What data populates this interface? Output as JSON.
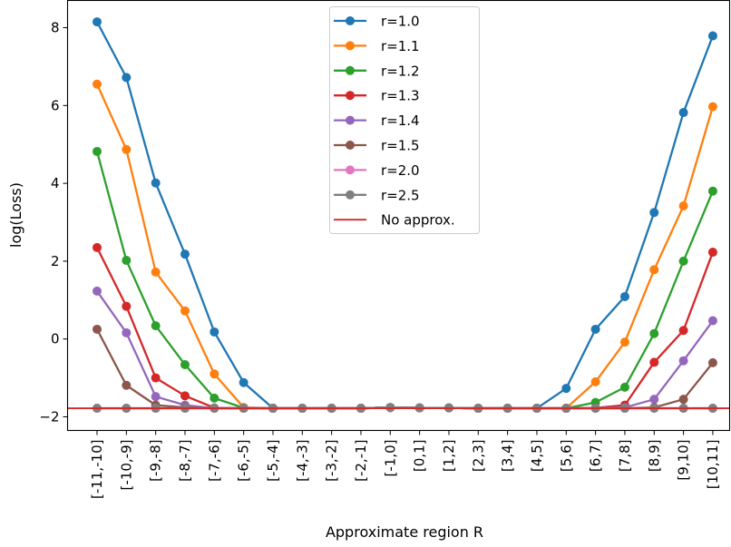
{
  "chart_data": {
    "type": "line",
    "title": "",
    "xlabel": "Approximate region R",
    "ylabel": "log(Loss)",
    "categories": [
      "[-11,-10]",
      "[-10,-9]",
      "[-9,-8]",
      "[-8,-7]",
      "[-7,-6]",
      "[-6,-5]",
      "[-5,-4]",
      "[-4,-3]",
      "[-3,-2]",
      "[-2,-1]",
      "[-1,0]",
      "[0,1]",
      "[1,2]",
      "[2,3]",
      "[3,4]",
      "[4,5]",
      "[5,6]",
      "[6,7]",
      "[7,8]",
      "[8,9]",
      "[9,10]",
      "[10,11]"
    ],
    "ylim": [
      -2.35,
      8.7
    ],
    "yticks": [
      -2,
      0,
      2,
      4,
      6,
      8
    ],
    "ytick_labels": [
      "−2",
      "0",
      "2",
      "4",
      "6",
      "8"
    ],
    "grid": false,
    "legend_position": "top-center",
    "series": [
      {
        "name": "r=1.0",
        "color": "#1f77b4",
        "values": [
          8.15,
          6.72,
          4.01,
          2.18,
          0.18,
          -1.12,
          -1.78,
          -1.78,
          -1.78,
          -1.78,
          -1.76,
          -1.77,
          -1.77,
          -1.78,
          -1.78,
          -1.78,
          -1.27,
          0.25,
          1.09,
          3.25,
          5.82,
          7.79
        ]
      },
      {
        "name": "r=1.1",
        "color": "#ff7f0e",
        "values": [
          6.55,
          4.87,
          1.72,
          0.72,
          -0.9,
          -1.76,
          -1.78,
          -1.78,
          -1.78,
          -1.78,
          -1.76,
          -1.77,
          -1.77,
          -1.78,
          -1.78,
          -1.78,
          -1.78,
          -1.1,
          -0.08,
          1.78,
          3.42,
          5.97
        ]
      },
      {
        "name": "r=1.2",
        "color": "#2ca02c",
        "values": [
          4.82,
          2.02,
          0.34,
          -0.66,
          -1.52,
          -1.77,
          -1.78,
          -1.78,
          -1.78,
          -1.78,
          -1.76,
          -1.77,
          -1.77,
          -1.78,
          -1.78,
          -1.78,
          -1.78,
          -1.63,
          -1.24,
          0.14,
          2.0,
          3.8
        ]
      },
      {
        "name": "r=1.3",
        "color": "#d62728",
        "values": [
          2.35,
          0.84,
          -1.0,
          -1.46,
          -1.77,
          -1.78,
          -1.78,
          -1.78,
          -1.78,
          -1.78,
          -1.76,
          -1.77,
          -1.77,
          -1.78,
          -1.78,
          -1.78,
          -1.78,
          -1.77,
          -1.7,
          -0.6,
          0.22,
          2.23
        ]
      },
      {
        "name": "r=1.4",
        "color": "#9467bd",
        "values": [
          1.23,
          0.16,
          -1.48,
          -1.7,
          -1.78,
          -1.78,
          -1.78,
          -1.78,
          -1.78,
          -1.78,
          -1.76,
          -1.77,
          -1.77,
          -1.78,
          -1.78,
          -1.78,
          -1.78,
          -1.78,
          -1.76,
          -1.55,
          -0.56,
          0.47
        ]
      },
      {
        "name": "r=1.5",
        "color": "#8c564b",
        "values": [
          0.25,
          -1.19,
          -1.7,
          -1.76,
          -1.78,
          -1.78,
          -1.78,
          -1.78,
          -1.78,
          -1.78,
          -1.76,
          -1.77,
          -1.77,
          -1.78,
          -1.78,
          -1.78,
          -1.78,
          -1.78,
          -1.78,
          -1.76,
          -1.55,
          -0.61
        ]
      },
      {
        "name": "r=2.0",
        "color": "#e377c2",
        "values": [
          -1.78,
          -1.78,
          -1.78,
          -1.78,
          -1.78,
          -1.78,
          -1.78,
          -1.78,
          -1.78,
          -1.78,
          -1.76,
          -1.77,
          -1.77,
          -1.78,
          -1.78,
          -1.78,
          -1.78,
          -1.78,
          -1.78,
          -1.78,
          -1.78,
          -1.78
        ]
      },
      {
        "name": "r=2.5",
        "color": "#7f7f7f",
        "values": [
          -1.78,
          -1.78,
          -1.78,
          -1.78,
          -1.78,
          -1.78,
          -1.78,
          -1.78,
          -1.78,
          -1.78,
          -1.76,
          -1.77,
          -1.77,
          -1.78,
          -1.78,
          -1.78,
          -1.78,
          -1.78,
          -1.78,
          -1.78,
          -1.78,
          -1.78
        ]
      }
    ],
    "reference_line": {
      "name": "No approx.",
      "color": "#d62728",
      "value": -1.78
    }
  }
}
